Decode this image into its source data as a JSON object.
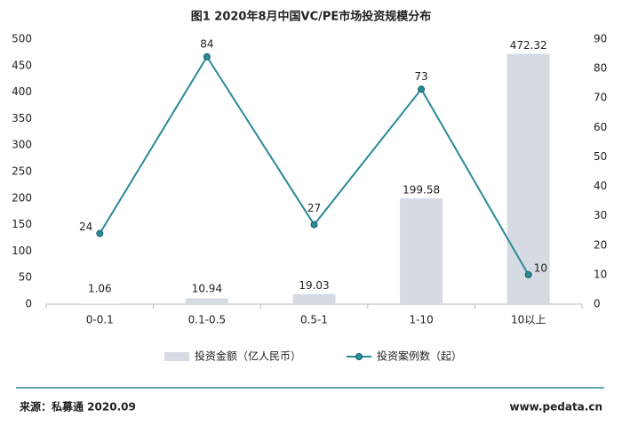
{
  "chart_data": {
    "type": "bar",
    "title": "图1   2020年8月中国VC/PE市场投资规模分布",
    "categories": [
      "0-0.1",
      "0.1-0.5",
      "0.5-1",
      "1-10",
      "10以上"
    ],
    "series": [
      {
        "name": "投资金额（亿人民币）",
        "type": "bar",
        "color": "#d5dae3",
        "values": [
          1.06,
          10.94,
          19.03,
          199.58,
          472.32
        ]
      },
      {
        "name": "投资案例数（起）",
        "type": "line",
        "axis": "y2",
        "color": "#2a8a96",
        "values": [
          24,
          84,
          27,
          73,
          10
        ]
      }
    ],
    "ylim": [
      0,
      500
    ],
    "yticks": [
      0,
      50,
      100,
      150,
      200,
      250,
      300,
      350,
      400,
      450,
      500
    ],
    "y2lim": [
      0,
      90
    ],
    "y2ticks": [
      0,
      10,
      20,
      30,
      40,
      50,
      60,
      70,
      80,
      90
    ],
    "grid": false,
    "legend": "bottom"
  },
  "footer": {
    "source": "来源：私募通 2020.09",
    "website": "www.pedata.cn"
  }
}
